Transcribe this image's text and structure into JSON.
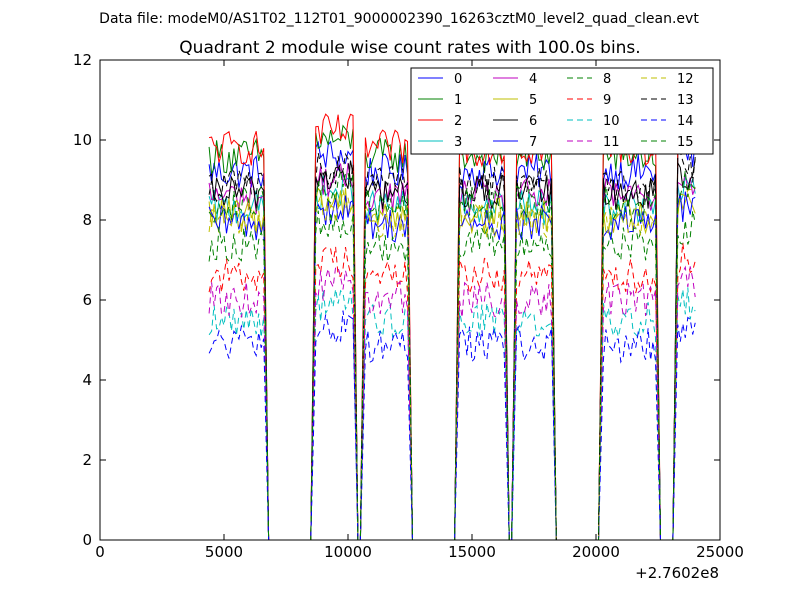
{
  "header": {
    "file_line": "Data file: modeM0/AS1T02_112T01_9000002390_16263cztM0_level2_quad_clean.evt"
  },
  "chart_data": {
    "type": "line",
    "title": "Quadrant 2 module wise count rates with 100.0s bins.",
    "xlabel": "",
    "ylabel": "",
    "x_offset_label": "+2.7602e8",
    "xlim": [
      0,
      25000
    ],
    "ylim": [
      0,
      12
    ],
    "xticks": [
      0,
      5000,
      10000,
      15000,
      20000,
      25000
    ],
    "yticks": [
      0,
      2,
      4,
      6,
      8,
      10,
      12
    ],
    "legend_position": "top-right",
    "segments": [
      {
        "start": 4400,
        "end": 6600
      },
      {
        "start": 8700,
        "end": 10200
      },
      {
        "start": 10700,
        "end": 12400
      },
      {
        "start": 14500,
        "end": 16300
      },
      {
        "start": 16800,
        "end": 18200
      },
      {
        "start": 20300,
        "end": 22400
      },
      {
        "start": 23300,
        "end": 24000
      }
    ],
    "series": [
      {
        "name": "0",
        "color": "#0000ff",
        "dash": "solid",
        "level": 9.2
      },
      {
        "name": "1",
        "color": "#008000",
        "dash": "solid",
        "level": 9.6
      },
      {
        "name": "2",
        "color": "#ff0000",
        "dash": "solid",
        "level": 9.8
      },
      {
        "name": "3",
        "color": "#00bfbf",
        "dash": "solid",
        "level": 8.3
      },
      {
        "name": "4",
        "color": "#bf00bf",
        "dash": "solid",
        "level": 8.6
      },
      {
        "name": "5",
        "color": "#bfbf00",
        "dash": "solid",
        "level": 8.1
      },
      {
        "name": "6",
        "color": "#000000",
        "dash": "solid",
        "level": 8.7
      },
      {
        "name": "7",
        "color": "#0000ff",
        "dash": "solid",
        "level": 7.9
      },
      {
        "name": "8",
        "color": "#008000",
        "dash": "dashed",
        "level": 7.4
      },
      {
        "name": "9",
        "color": "#ff0000",
        "dash": "dashed",
        "level": 6.6
      },
      {
        "name": "10",
        "color": "#00bfbf",
        "dash": "dashed",
        "level": 5.5
      },
      {
        "name": "11",
        "color": "#bf00bf",
        "dash": "dashed",
        "level": 6.0
      },
      {
        "name": "12",
        "color": "#bfbf00",
        "dash": "dashed",
        "level": 8.0
      },
      {
        "name": "13",
        "color": "#000000",
        "dash": "dashed",
        "level": 8.9
      },
      {
        "name": "14",
        "color": "#0000ff",
        "dash": "dashed",
        "level": 4.9
      },
      {
        "name": "15",
        "color": "#008000",
        "dash": "dashed",
        "level": 8.4
      }
    ]
  }
}
